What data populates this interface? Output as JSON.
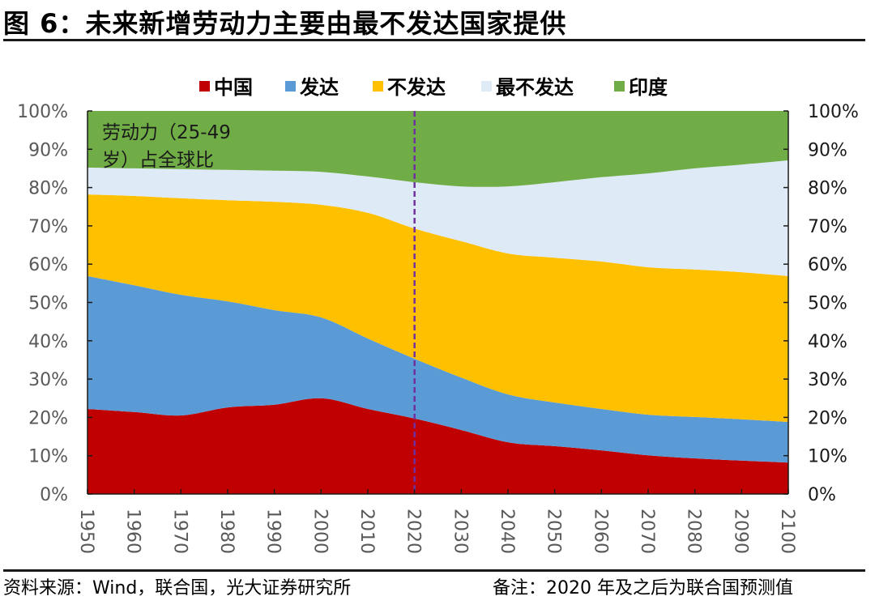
{
  "header": {
    "title": "图 6：未来新增劳动力主要由最不发达国家提供"
  },
  "footer": {
    "source": "资料来源：Wind，联合国，光大证券研究所",
    "note": "备注：2020 年及之后为联合国预测值"
  },
  "chart_data": {
    "type": "area",
    "stacked": true,
    "title": "图 6：未来新增劳动力主要由最不发达国家提供",
    "annotation": [
      "劳动力（25-49",
      "岁）占全球比"
    ],
    "xlabel": "",
    "ylabel": "",
    "x": [
      1950,
      1960,
      1970,
      1980,
      1990,
      2000,
      2010,
      2020,
      2030,
      2040,
      2050,
      2060,
      2070,
      2080,
      2090,
      2100
    ],
    "x_tick_labels": [
      "1950",
      "1960",
      "1970",
      "1980",
      "1990",
      "2000",
      "2010",
      "2020",
      "2030",
      "2040",
      "2050",
      "2060",
      "2070",
      "2080",
      "2090",
      "2100"
    ],
    "ylim": [
      0,
      100
    ],
    "y_tick_labels": [
      "0%",
      "10%",
      "20%",
      "30%",
      "40%",
      "50%",
      "60%",
      "70%",
      "80%",
      "90%",
      "100%"
    ],
    "y_tick_labels_right": [
      "0%",
      "10%",
      "20%",
      "30%",
      "40%",
      "50%",
      "60%",
      "70%",
      "80%",
      "90%",
      "100%"
    ],
    "unit": "%",
    "grid": false,
    "legend_position": "top",
    "reference_line": {
      "x": 2020,
      "style": "dashed",
      "color": "#7030A0",
      "meaning": "2020 年及之后为联合国预测值"
    },
    "series": [
      {
        "name": "中国",
        "color": "#C00000",
        "values": [
          22.2,
          21.4,
          20.5,
          22.6,
          23.3,
          25.0,
          22.2,
          19.7,
          16.7,
          13.5,
          12.5,
          11.4,
          10.1,
          9.3,
          8.7,
          8.2
        ]
      },
      {
        "name": "发达",
        "color": "#5B9BD5",
        "values": [
          34.7,
          33.1,
          31.5,
          27.7,
          24.7,
          21.1,
          18.4,
          15.6,
          13.7,
          12.5,
          11.4,
          10.8,
          10.6,
          10.8,
          10.8,
          10.6
        ]
      },
      {
        "name": "不发达",
        "color": "#FFC000",
        "values": [
          21.3,
          23.3,
          25.2,
          26.4,
          28.3,
          29.4,
          32.8,
          34.0,
          35.6,
          36.8,
          37.8,
          38.5,
          38.5,
          38.5,
          38.4,
          38.1
        ]
      },
      {
        "name": "最不发达",
        "color": "#DEEAF6",
        "values": [
          7.0,
          7.2,
          7.6,
          7.9,
          8.1,
          8.6,
          9.5,
          12.1,
          14.3,
          17.5,
          19.7,
          22.0,
          24.5,
          26.4,
          28.1,
          30.2
        ]
      },
      {
        "name": "印度",
        "color": "#70AD47",
        "values": [
          14.8,
          15.0,
          15.2,
          15.4,
          15.6,
          15.9,
          17.1,
          18.6,
          19.7,
          19.7,
          18.6,
          17.3,
          16.3,
          15.0,
          14.0,
          12.9
        ]
      }
    ]
  }
}
